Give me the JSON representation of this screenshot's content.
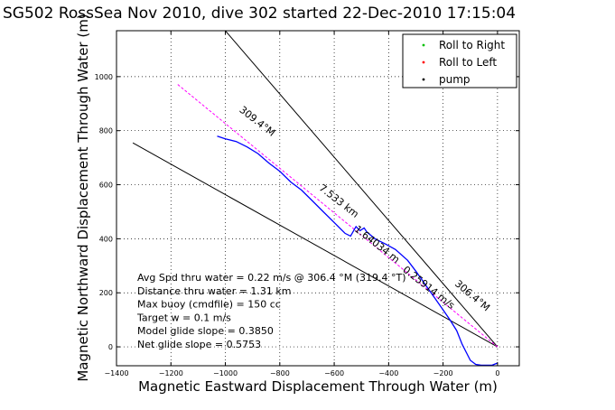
{
  "chart_data": {
    "type": "line",
    "title": "SG502 RossSea Nov 2010, dive 302 started 22-Dec-2010 17:15:04",
    "xlabel": "Magnetic Eastward Displacement Through Water (m)",
    "ylabel": "Magnetic Northward Displacement Through Water (m)",
    "xlim": [
      -1400,
      80
    ],
    "ylim": [
      -70,
      1170
    ],
    "xticks": [
      -1400,
      -1200,
      -1000,
      -800,
      -600,
      -400,
      -200,
      0
    ],
    "xtick_labels": [
      "−1400",
      "−1200",
      "−1000",
      "−800",
      "−600",
      "−400",
      "−200",
      "0"
    ],
    "yticks": [
      0,
      200,
      400,
      600,
      800,
      1000
    ],
    "ytick_labels": [
      "0",
      "200",
      "400",
      "600",
      "800",
      "1000"
    ],
    "grid": true,
    "legend_position": "top-right",
    "legend": [
      {
        "label": "Roll to Right",
        "color": "#00c000",
        "marker": "dot"
      },
      {
        "label": "Roll to Left",
        "color": "#ff0000",
        "marker": "dot"
      },
      {
        "label": "pump",
        "color": "#000000",
        "marker": "dot"
      }
    ],
    "series": [
      {
        "color": "#000000",
        "style": "solid",
        "x": [
          0,
          -1000
        ],
        "y": [
          0,
          1170
        ]
      },
      {
        "color": "#000000",
        "style": "solid",
        "x": [
          0,
          -1340
        ],
        "y": [
          0,
          755
        ]
      },
      {
        "color": "#ff00ff",
        "style": "dashed",
        "x": [
          0,
          -1180
        ],
        "y": [
          0,
          975
        ]
      },
      {
        "color": "#0000ff",
        "style": "solid",
        "x": [
          0,
          -20,
          -60,
          -80,
          -100,
          -130,
          -150,
          -175,
          -195,
          -230,
          -265,
          -300,
          -330,
          -375,
          -410,
          -450,
          -480,
          -490,
          -505,
          -520,
          -540,
          -560,
          -600,
          -640,
          -680,
          -720,
          -760,
          -800,
          -840,
          -880,
          -920,
          -960,
          -1000,
          -1030
        ],
        "y": [
          -60,
          -68,
          -68,
          -65,
          -50,
          10,
          60,
          100,
          130,
          180,
          230,
          280,
          320,
          360,
          380,
          400,
          425,
          440,
          430,
          445,
          410,
          420,
          460,
          500,
          540,
          580,
          610,
          650,
          680,
          715,
          740,
          760,
          770,
          780
        ]
      }
    ],
    "annotations": [
      {
        "text": "309.4°M",
        "x": -890,
        "y": 825,
        "rotation": 38
      },
      {
        "text": "7.533 km",
        "x": -590,
        "y": 530,
        "rotation": 38
      },
      {
        "text": "1.64034 m",
        "x": -450,
        "y": 370,
        "rotation": 38
      },
      {
        "text": "0.25914 m/s",
        "x": -260,
        "y": 210,
        "rotation": 38
      },
      {
        "text": "306.4°M",
        "x": -100,
        "y": 180,
        "rotation": 40
      }
    ],
    "summary": [
      "Avg Spd thru water =  0.22 m/s @ 306.4 °M (319.4 °T)",
      "Distance thru water =  1.31 km",
      "Max buoy (cmdfile) = 150 cc",
      "Target w = 0.1 m/s",
      "Model glide slope = 0.3850",
      "Net glide slope = 0.5753"
    ]
  }
}
